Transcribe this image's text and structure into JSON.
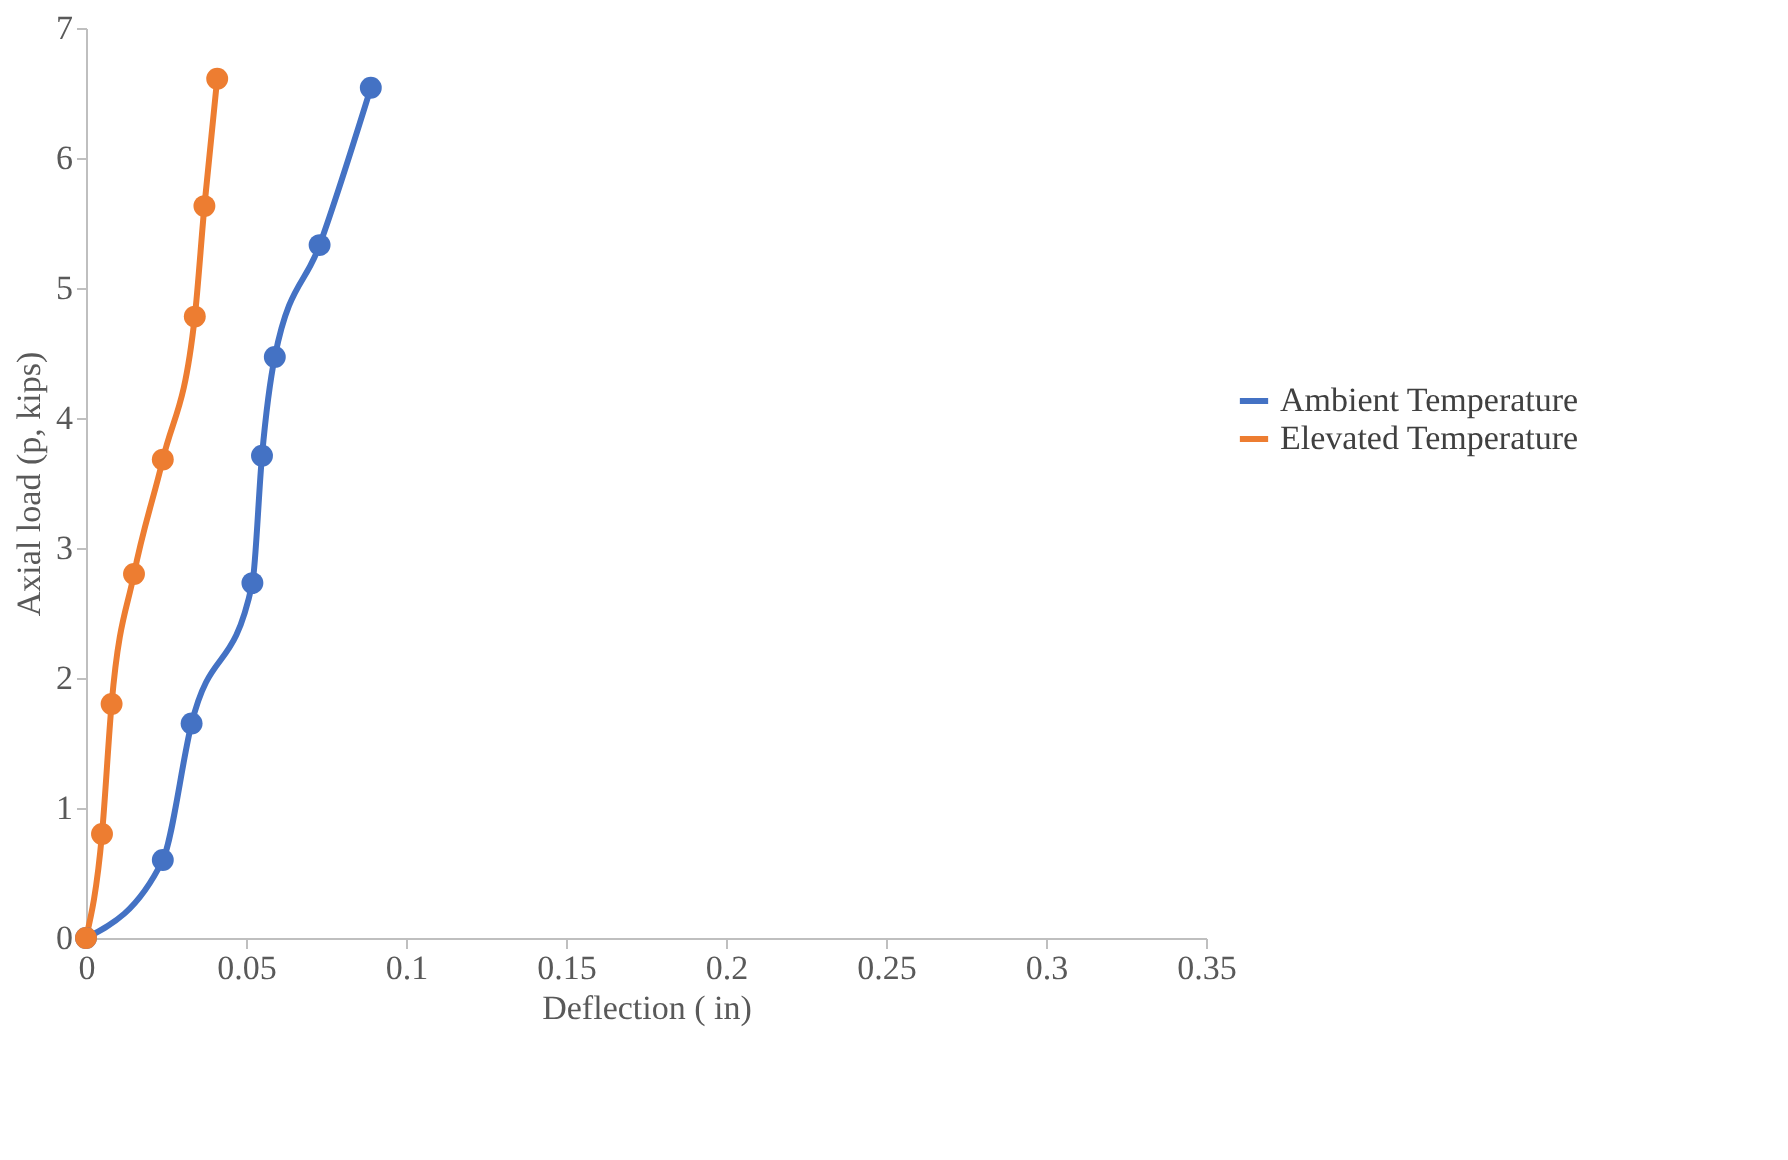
{
  "chart_data": {
    "type": "line",
    "xlabel": "Deflection ( in)",
    "ylabel": "Axial load (p, kips)",
    "xlim": [
      0,
      0.35
    ],
    "xticks": [
      0,
      0.05,
      0.1,
      0.15,
      0.2,
      0.25,
      0.3,
      0.35
    ],
    "ylim": [
      0,
      7
    ],
    "yticks": [
      0,
      1,
      2,
      3,
      4,
      5,
      6,
      7
    ],
    "grid": false,
    "legend": "right",
    "marker": "circle",
    "line_style": "solid",
    "series": [
      {
        "name": "Ambient Temperature",
        "color": "#4472c4",
        "x": [
          0,
          0.024,
          0.033,
          0.052,
          0.055,
          0.059,
          0.073,
          0.089
        ],
        "values": [
          0,
          0.6,
          1.65,
          2.73,
          3.71,
          4.47,
          5.33,
          6.54
        ]
      },
      {
        "name": "Elevated Temperature",
        "color": "#ed7d31",
        "x": [
          0,
          0.005,
          0.008,
          0.015,
          0.024,
          0.034,
          0.037,
          0.041
        ],
        "values": [
          0,
          0.8,
          1.8,
          2.8,
          3.68,
          4.78,
          5.63,
          6.61
        ]
      }
    ]
  }
}
